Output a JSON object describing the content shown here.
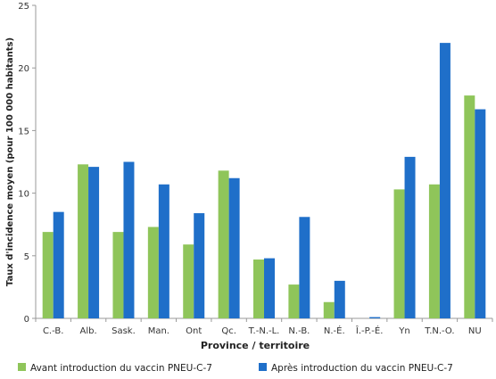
{
  "chart_data": {
    "type": "bar",
    "xlabel": "Province / territoire",
    "ylabel": "Taux d'incidence moyen (pour 100 000 habitants)",
    "ylim": [
      0,
      25
    ],
    "yticks": [
      0,
      5,
      10,
      15,
      20,
      25
    ],
    "grid": false,
    "legend_position": "bottom",
    "categories": [
      "C.-B.",
      "Alb.",
      "Sask.",
      "Man.",
      "Ont",
      "Qc.",
      "T.-N.-L.",
      "N.-B.",
      "N.-É.",
      "Î.-P.-É.",
      "Yn",
      "T.N.-O.",
      "NU"
    ],
    "series": [
      {
        "name": "Avant introduction du vaccin PNEU-C-7",
        "color": "#8fc55a",
        "values": [
          6.9,
          12.3,
          6.9,
          7.3,
          5.9,
          11.8,
          4.7,
          2.7,
          1.3,
          0.0,
          10.3,
          10.7,
          17.8
        ]
      },
      {
        "name": "Après introduction du vaccin PNEU-C-7",
        "color": "#1f6fc9",
        "values": [
          8.5,
          12.1,
          12.5,
          10.7,
          8.4,
          11.2,
          4.8,
          8.1,
          3.0,
          0.1,
          12.9,
          22.0,
          16.7
        ]
      }
    ]
  }
}
